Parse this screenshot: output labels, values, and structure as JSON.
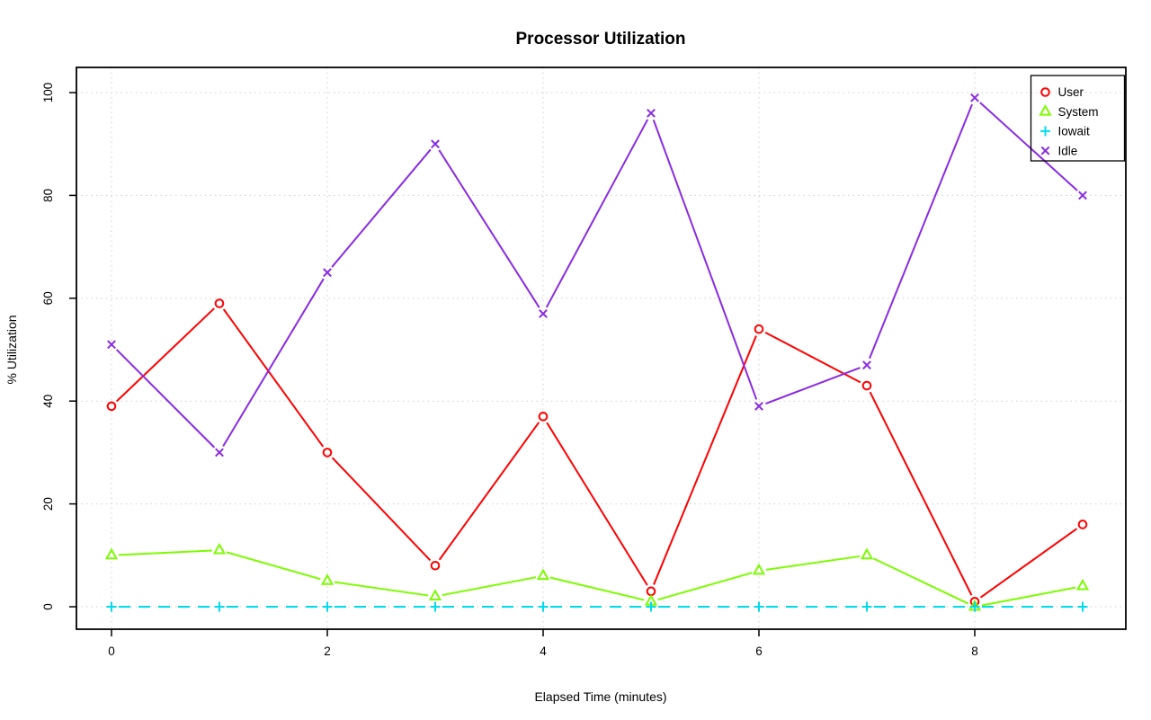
{
  "chart_data": {
    "type": "line",
    "title": "Processor Utilization",
    "xlabel": "Elapsed Time (minutes)",
    "ylabel": "% Utilization",
    "x": [
      0,
      1,
      2,
      3,
      4,
      5,
      6,
      7,
      8,
      9
    ],
    "xticks": [
      0,
      2,
      4,
      6,
      8
    ],
    "yticks": [
      0,
      20,
      40,
      60,
      80,
      100
    ],
    "xlim": [
      -0.36,
      9.36
    ],
    "ylim": [
      -4.4,
      104.9
    ],
    "grid": "dotted",
    "grid_color": "#cfcfcf",
    "axis_color": "#000000",
    "background": "#ffffff",
    "legend_position": "top-right",
    "series": [
      {
        "name": "User",
        "marker": "circle",
        "color": "#ff0000",
        "linestyle": "solid",
        "values": [
          39,
          59,
          30,
          8,
          37,
          3,
          54,
          43,
          1,
          16
        ]
      },
      {
        "name": "System",
        "marker": "triangle",
        "color": "#7cfc00",
        "linestyle": "solid",
        "values": [
          10,
          11,
          5,
          2,
          6,
          1,
          7,
          10,
          0,
          4
        ]
      },
      {
        "name": "Iowait",
        "marker": "plus",
        "color": "#00dcee",
        "linestyle": "dashed",
        "values": [
          0,
          0,
          0,
          0,
          0,
          0,
          0,
          0,
          0,
          0
        ]
      },
      {
        "name": "Idle",
        "marker": "x",
        "color": "#8a2be2",
        "linestyle": "solid",
        "values": [
          51,
          30,
          65,
          90,
          57,
          96,
          39,
          47,
          99,
          80
        ]
      }
    ]
  }
}
